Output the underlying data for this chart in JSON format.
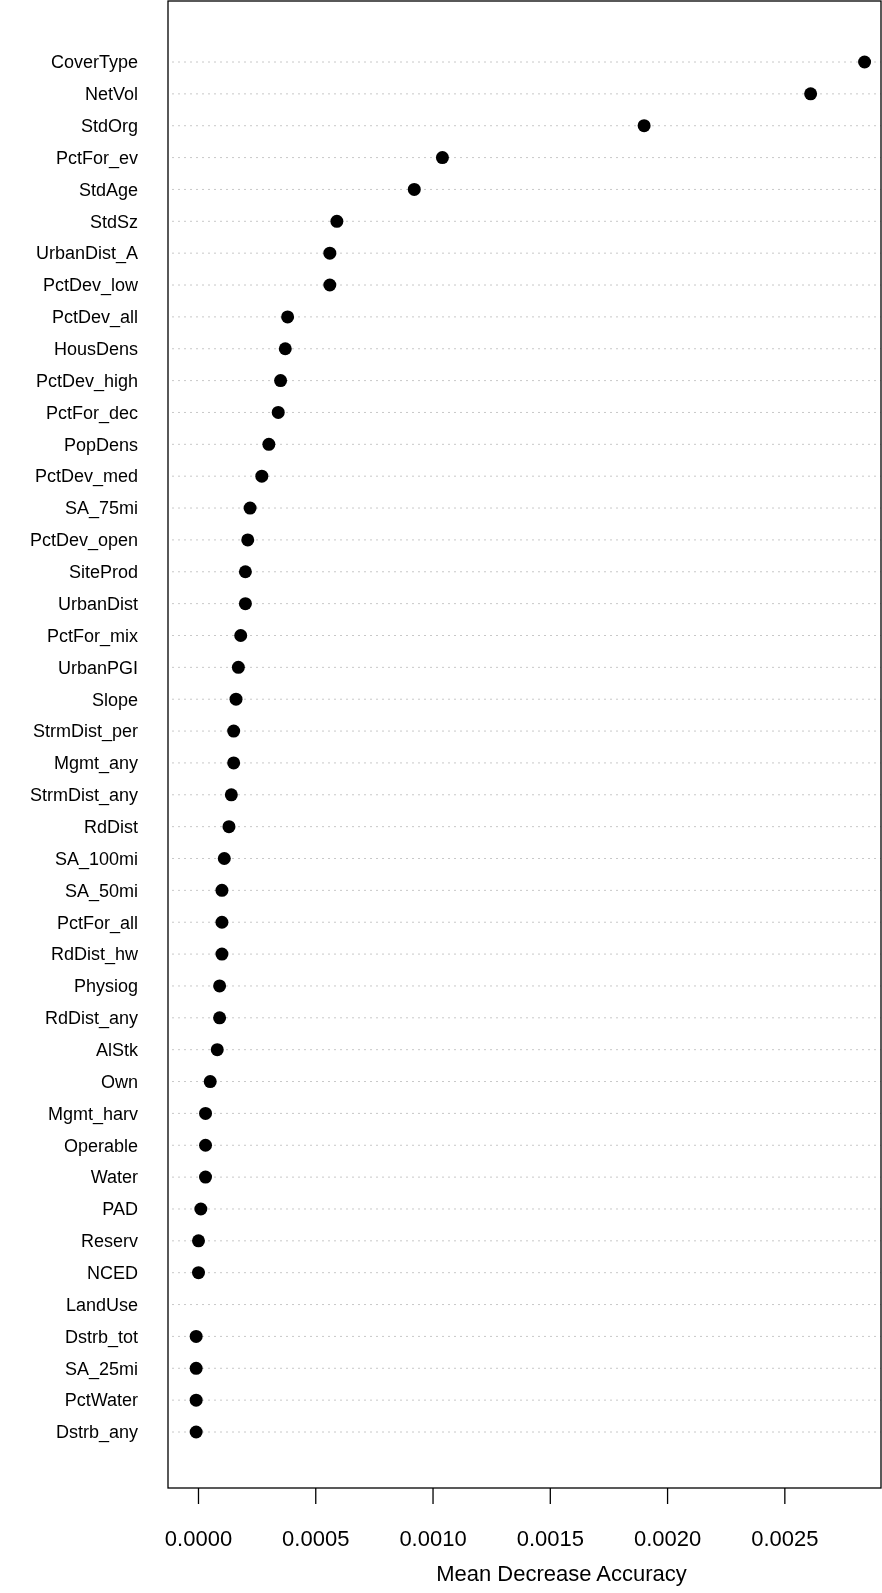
{
  "chart_data": {
    "type": "scatter",
    "orientation": "horizontal",
    "xlabel": "Mean Decrease Accuracy",
    "categories": [
      "CoverType",
      "NetVol",
      "StdOrg",
      "PctFor_ev",
      "StdAge",
      "StdSz",
      "UrbanDist_A",
      "PctDev_low",
      "PctDev_all",
      "HousDens",
      "PctDev_high",
      "PctFor_dec",
      "PopDens",
      "PctDev_med",
      "SA_75mi",
      "PctDev_open",
      "SiteProd",
      "UrbanDist",
      "PctFor_mix",
      "UrbanPGI",
      "Slope",
      "StrmDist_per",
      "Mgmt_any",
      "StrmDist_any",
      "RdDist",
      "SA_100mi",
      "SA_50mi",
      "PctFor_all",
      "RdDist_hw",
      "Physiog",
      "RdDist_any",
      "AlStk",
      "Own",
      "Mgmt_harv",
      "Operable",
      "Water",
      "PAD",
      "Reserv",
      "NCED",
      "LandUse",
      "Dstrb_tot",
      "SA_25mi",
      "PctWater",
      "Dstrb_any"
    ],
    "series": [
      {
        "color": "#000000",
        "values": [
          0.00284,
          0.00261,
          0.0019,
          0.00104,
          0.00092,
          0.00059,
          0.00056,
          0.00056,
          0.00038,
          0.00037,
          0.00035,
          0.00034,
          0.0003,
          0.00027,
          0.00022,
          0.00021,
          0.0002,
          0.0002,
          0.00018,
          0.00017,
          0.00016,
          0.00015,
          0.00015,
          0.00014,
          0.00013,
          0.00011,
          0.0001,
          0.0001,
          0.0001,
          9e-05,
          9e-05,
          8e-05,
          5e-05,
          3e-05,
          3e-05,
          3e-05,
          1e-05,
          0.0,
          0.0,
          null,
          -1e-05,
          -1e-05,
          -1e-05,
          -1e-05
        ]
      }
    ],
    "xlim": [
      -0.00013,
      0.00291
    ],
    "xticks": [
      {
        "value": 0,
        "label": "0.0000"
      },
      {
        "value": 0.0005,
        "label": "0.0005"
      },
      {
        "value": 0.001,
        "label": "0.0010"
      },
      {
        "value": 0.0015,
        "label": "0.0015"
      },
      {
        "value": 0.002,
        "label": "0.0020"
      },
      {
        "value": 0.0025,
        "label": "0.0025"
      }
    ],
    "grid": "y",
    "marker": "circle"
  }
}
